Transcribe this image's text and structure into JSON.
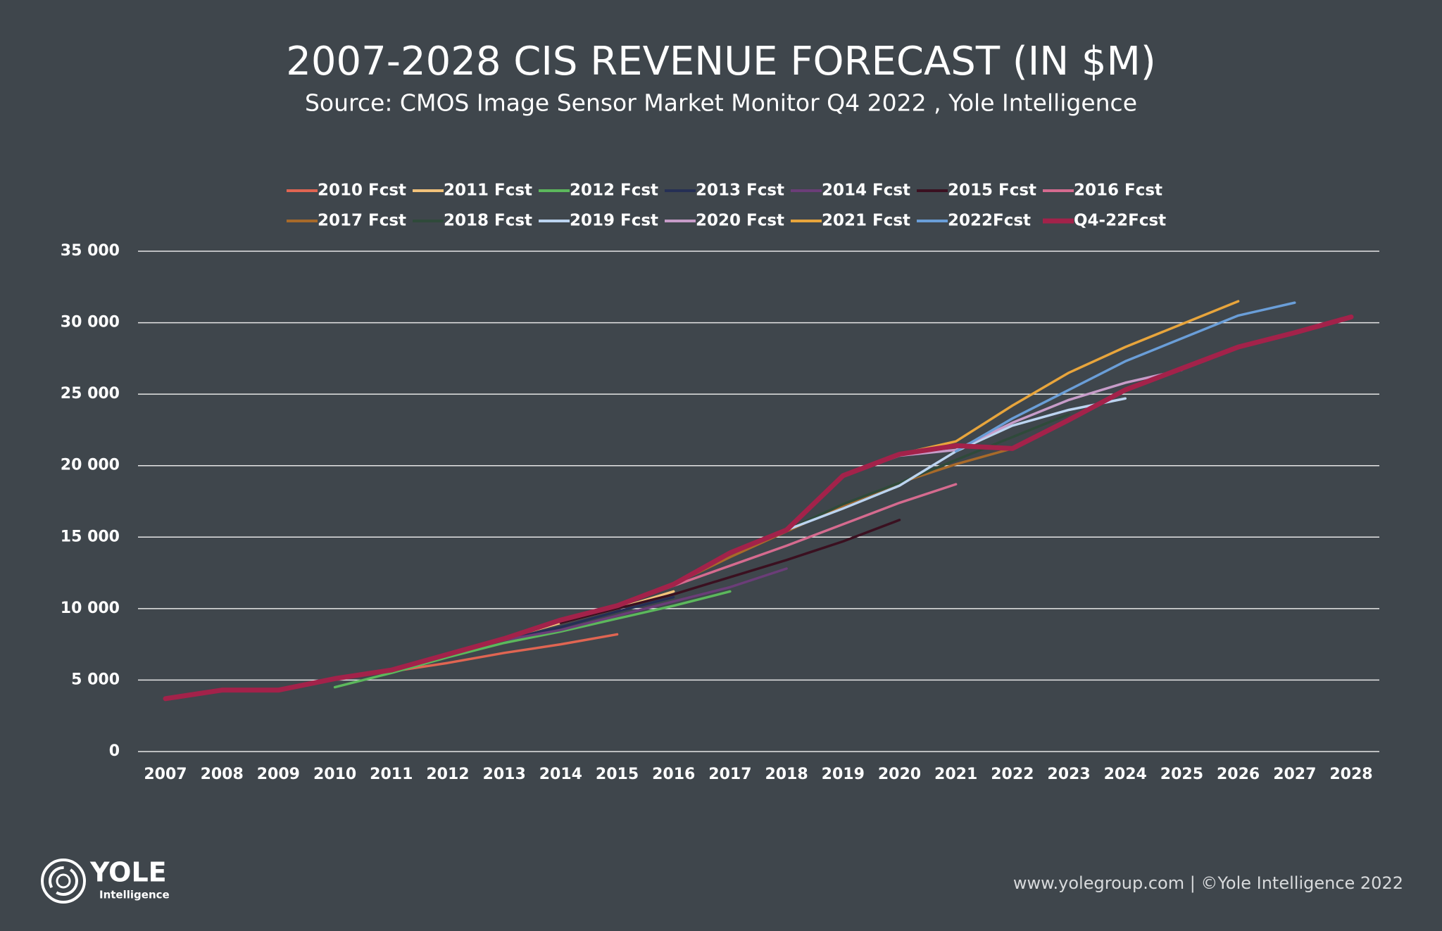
{
  "chart_data": {
    "type": "line",
    "title": "2007-2028 CIS REVENUE FORECAST (IN $M)",
    "subtitle": "Source: CMOS Image Sensor Market Monitor Q4 2022 , Yole Intelligence",
    "footer": "www.yolegroup.com | ©Yole Intelligence 2022",
    "logo": {
      "name": "YOLE",
      "tagline": "Intelligence"
    },
    "categories": [
      "2007",
      "2008",
      "2009",
      "2010",
      "2011",
      "2012",
      "2013",
      "2014",
      "2015",
      "2016",
      "2017",
      "2018",
      "2019",
      "2020",
      "2021",
      "2022",
      "2023",
      "2024",
      "2025",
      "2026",
      "2027",
      "2028"
    ],
    "ylim": [
      0,
      35000
    ],
    "yticks": [
      0,
      {
        "value": 5000,
        "label": "5 000"
      },
      {
        "value": 10000,
        "label": "10 000"
      },
      {
        "value": 15000,
        "label": "15 000"
      },
      {
        "value": 20000,
        "label": "20 000"
      },
      {
        "value": 25000,
        "label": "25 000"
      },
      {
        "value": 30000,
        "label": "30 000"
      },
      {
        "value": 35000,
        "label": "35 000"
      }
    ],
    "grid": true,
    "legend": "top",
    "series": [
      {
        "name": "2010 Fcst",
        "color": "#e06552",
        "values": [
          null,
          null,
          null,
          5100,
          5600,
          6200,
          6900,
          7500,
          8200,
          null,
          null,
          null,
          null,
          null,
          null,
          null,
          null,
          null,
          null,
          null,
          null,
          null
        ]
      },
      {
        "name": "2011 Fcst",
        "color": "#f2c27a",
        "values": [
          null,
          null,
          null,
          null,
          5700,
          6800,
          7900,
          9000,
          10000,
          11200,
          null,
          null,
          null,
          null,
          null,
          null,
          null,
          null,
          null,
          null,
          null,
          null
        ]
      },
      {
        "name": "2012 Fcst",
        "color": "#5cb85c",
        "values": [
          null,
          null,
          null,
          4500,
          5500,
          6600,
          7600,
          8400,
          9300,
          10200,
          11200,
          null,
          null,
          null,
          null,
          null,
          null,
          null,
          null,
          null,
          null,
          null
        ]
      },
      {
        "name": "2013 Fcst",
        "color": "#252f55",
        "values": [
          null,
          null,
          null,
          null,
          null,
          6800,
          7800,
          8700,
          9800,
          10800,
          null,
          null,
          null,
          null,
          null,
          null,
          null,
          null,
          null,
          null,
          null,
          null
        ]
      },
      {
        "name": "2014 Fcst",
        "color": "#6b3d78",
        "values": [
          null,
          null,
          null,
          null,
          null,
          null,
          7800,
          8500,
          9500,
          10500,
          11500,
          12800,
          null,
          null,
          null,
          null,
          null,
          null,
          null,
          null,
          null,
          null
        ]
      },
      {
        "name": "2015 Fcst",
        "color": "#3a1020",
        "values": [
          null,
          null,
          null,
          null,
          null,
          null,
          null,
          9000,
          10000,
          11000,
          12200,
          13400,
          14700,
          16200,
          null,
          null,
          null,
          null,
          null,
          null,
          null,
          null
        ]
      },
      {
        "name": "2016 Fcst",
        "color": "#d56b8f",
        "values": [
          null,
          null,
          null,
          null,
          null,
          null,
          null,
          null,
          10200,
          11600,
          13000,
          14400,
          15900,
          17400,
          18700,
          null,
          null,
          null,
          null,
          null,
          null,
          null
        ]
      },
      {
        "name": "2017 Fcst",
        "color": "#a86a2a",
        "values": [
          null,
          null,
          null,
          null,
          null,
          null,
          null,
          null,
          null,
          11700,
          13600,
          15400,
          17200,
          18800,
          20100,
          21200,
          null,
          null,
          null,
          null,
          null,
          null
        ]
      },
      {
        "name": "2018 Fcst",
        "color": "#2f4a3a",
        "values": [
          null,
          null,
          null,
          null,
          null,
          null,
          null,
          null,
          null,
          null,
          13900,
          15500,
          17300,
          18800,
          20400,
          22000,
          23600,
          null,
          null,
          null,
          null,
          null
        ]
      },
      {
        "name": "2019 Fcst",
        "color": "#bcd4f0",
        "values": [
          null,
          null,
          null,
          null,
          null,
          null,
          null,
          null,
          null,
          null,
          null,
          15500,
          17000,
          18600,
          21000,
          22800,
          23900,
          24700,
          null,
          null,
          null,
          null
        ]
      },
      {
        "name": "2020 Fcst",
        "color": "#c79cc9",
        "values": [
          null,
          null,
          null,
          null,
          null,
          null,
          null,
          null,
          null,
          null,
          null,
          null,
          19300,
          20700,
          21100,
          23000,
          24600,
          25800,
          26700,
          null,
          null,
          null
        ]
      },
      {
        "name": "2021 Fcst",
        "color": "#e8a53c",
        "values": [
          null,
          null,
          null,
          null,
          null,
          null,
          null,
          null,
          null,
          null,
          null,
          null,
          null,
          20800,
          21700,
          24200,
          26500,
          28300,
          29900,
          31500,
          null,
          null
        ]
      },
      {
        "name": "2022Fcst",
        "color": "#6a9ed8",
        "values": [
          null,
          null,
          null,
          null,
          null,
          null,
          null,
          null,
          null,
          null,
          null,
          null,
          null,
          null,
          21000,
          23300,
          25300,
          27300,
          28900,
          30500,
          31400,
          null
        ]
      },
      {
        "name": "Q4-22Fcst",
        "color": "#a3224a",
        "values": [
          3700,
          4300,
          4300,
          5100,
          5700,
          6800,
          7900,
          9200,
          10200,
          11700,
          13900,
          15500,
          19300,
          20800,
          21400,
          21200,
          23200,
          25300,
          26800,
          28300,
          29300,
          30400
        ]
      }
    ]
  }
}
